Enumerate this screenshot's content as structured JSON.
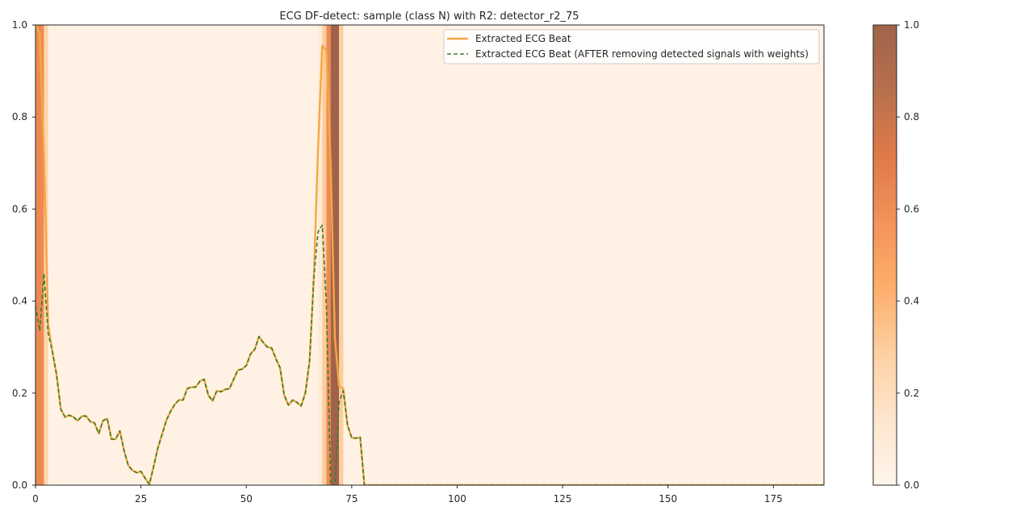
{
  "chart_data": {
    "type": "line",
    "title": "ECG DF-detect: sample (class N) with R2: detector_r2_75",
    "xlabel": "",
    "ylabel": "",
    "xlim": [
      0,
      187
    ],
    "ylim": [
      0,
      1
    ],
    "x_ticks": [
      0,
      25,
      50,
      75,
      100,
      125,
      150,
      175
    ],
    "y_ticks": [
      0.0,
      0.2,
      0.4,
      0.6,
      0.8,
      1.0
    ],
    "grid": false,
    "legend_position": "top-right",
    "series": [
      {
        "name": "Extracted ECG Beat",
        "style": "solid",
        "color": "#f5a742",
        "x": [
          0,
          1,
          2,
          3,
          4,
          5,
          6,
          7,
          8,
          9,
          10,
          11,
          12,
          13,
          14,
          15,
          16,
          17,
          18,
          19,
          20,
          21,
          22,
          23,
          24,
          25,
          26,
          27,
          28,
          29,
          30,
          31,
          32,
          33,
          34,
          35,
          36,
          37,
          38,
          39,
          40,
          41,
          42,
          43,
          44,
          45,
          46,
          47,
          48,
          49,
          50,
          51,
          52,
          53,
          54,
          55,
          56,
          57,
          58,
          59,
          60,
          61,
          62,
          63,
          64,
          65,
          66,
          67,
          68,
          69,
          70,
          71,
          72,
          73,
          74,
          75,
          76,
          77,
          78,
          187
        ],
        "y": [
          1.0,
          0.98,
          0.72,
          0.35,
          0.29,
          0.24,
          0.165,
          0.148,
          0.152,
          0.148,
          0.14,
          0.15,
          0.15,
          0.138,
          0.135,
          0.112,
          0.14,
          0.145,
          0.1,
          0.1,
          0.118,
          0.075,
          0.043,
          0.032,
          0.027,
          0.03,
          0.015,
          0.002,
          0.04,
          0.08,
          0.11,
          0.14,
          0.16,
          0.175,
          0.185,
          0.185,
          0.21,
          0.213,
          0.213,
          0.226,
          0.23,
          0.195,
          0.183,
          0.205,
          0.203,
          0.208,
          0.21,
          0.23,
          0.25,
          0.252,
          0.26,
          0.285,
          0.295,
          0.323,
          0.31,
          0.3,
          0.298,
          0.275,
          0.255,
          0.195,
          0.174,
          0.185,
          0.18,
          0.172,
          0.2,
          0.27,
          0.45,
          0.73,
          0.955,
          0.945,
          0.7,
          0.32,
          0.215,
          0.21,
          0.13,
          0.103,
          0.102,
          0.104,
          0.0,
          0.0
        ]
      },
      {
        "name": "Extracted ECG Beat (AFTER removing detected signals with weights)",
        "style": "dashed",
        "color": "#3a7d2c",
        "x": [
          0,
          1,
          2,
          3,
          4,
          5,
          6,
          7,
          8,
          9,
          10,
          11,
          12,
          13,
          14,
          15,
          16,
          17,
          18,
          19,
          20,
          21,
          22,
          23,
          24,
          25,
          26,
          27,
          28,
          29,
          30,
          31,
          32,
          33,
          34,
          35,
          36,
          37,
          38,
          39,
          40,
          41,
          42,
          43,
          44,
          45,
          46,
          47,
          48,
          49,
          50,
          51,
          52,
          53,
          54,
          55,
          56,
          57,
          58,
          59,
          60,
          61,
          62,
          63,
          64,
          65,
          66,
          67,
          68,
          69,
          70,
          71,
          72,
          73,
          74,
          75,
          76,
          77,
          78,
          187
        ],
        "y": [
          0.39,
          0.335,
          0.46,
          0.33,
          0.29,
          0.24,
          0.165,
          0.148,
          0.152,
          0.148,
          0.14,
          0.15,
          0.15,
          0.138,
          0.135,
          0.112,
          0.14,
          0.145,
          0.1,
          0.1,
          0.118,
          0.075,
          0.043,
          0.032,
          0.027,
          0.03,
          0.015,
          0.002,
          0.04,
          0.08,
          0.11,
          0.14,
          0.16,
          0.175,
          0.185,
          0.185,
          0.21,
          0.213,
          0.213,
          0.226,
          0.23,
          0.195,
          0.183,
          0.205,
          0.203,
          0.208,
          0.21,
          0.23,
          0.25,
          0.252,
          0.26,
          0.285,
          0.295,
          0.323,
          0.31,
          0.3,
          0.298,
          0.275,
          0.255,
          0.195,
          0.174,
          0.185,
          0.18,
          0.172,
          0.2,
          0.27,
          0.45,
          0.55,
          0.565,
          0.39,
          0.0,
          0.0,
          0.18,
          0.205,
          0.13,
          0.103,
          0.102,
          0.104,
          0.0,
          0.0
        ]
      }
    ],
    "heat_bands": [
      {
        "x0": 0,
        "x1": 2,
        "weight": 0.62
      },
      {
        "x0": 2,
        "x1": 3,
        "weight": 0.25
      },
      {
        "x0": 67,
        "x1": 68,
        "weight": 0.1
      },
      {
        "x0": 68,
        "x1": 69,
        "weight": 0.3
      },
      {
        "x0": 69,
        "x1": 70,
        "weight": 0.62
      },
      {
        "x0": 70,
        "x1": 72,
        "weight": 1.0
      },
      {
        "x0": 72,
        "x1": 73,
        "weight": 0.3
      }
    ],
    "heat_background_weight": 0.03,
    "colorbar": {
      "min": 0.0,
      "max": 1.0,
      "ticks": [
        0.0,
        0.2,
        0.4,
        0.6,
        0.8,
        1.0
      ],
      "colormap": [
        "#fff5eb",
        "#fee6ce",
        "#fdd0a2",
        "#fdae6b",
        "#f4925a",
        "#e07a48",
        "#b8704e",
        "#a0634a"
      ]
    }
  }
}
